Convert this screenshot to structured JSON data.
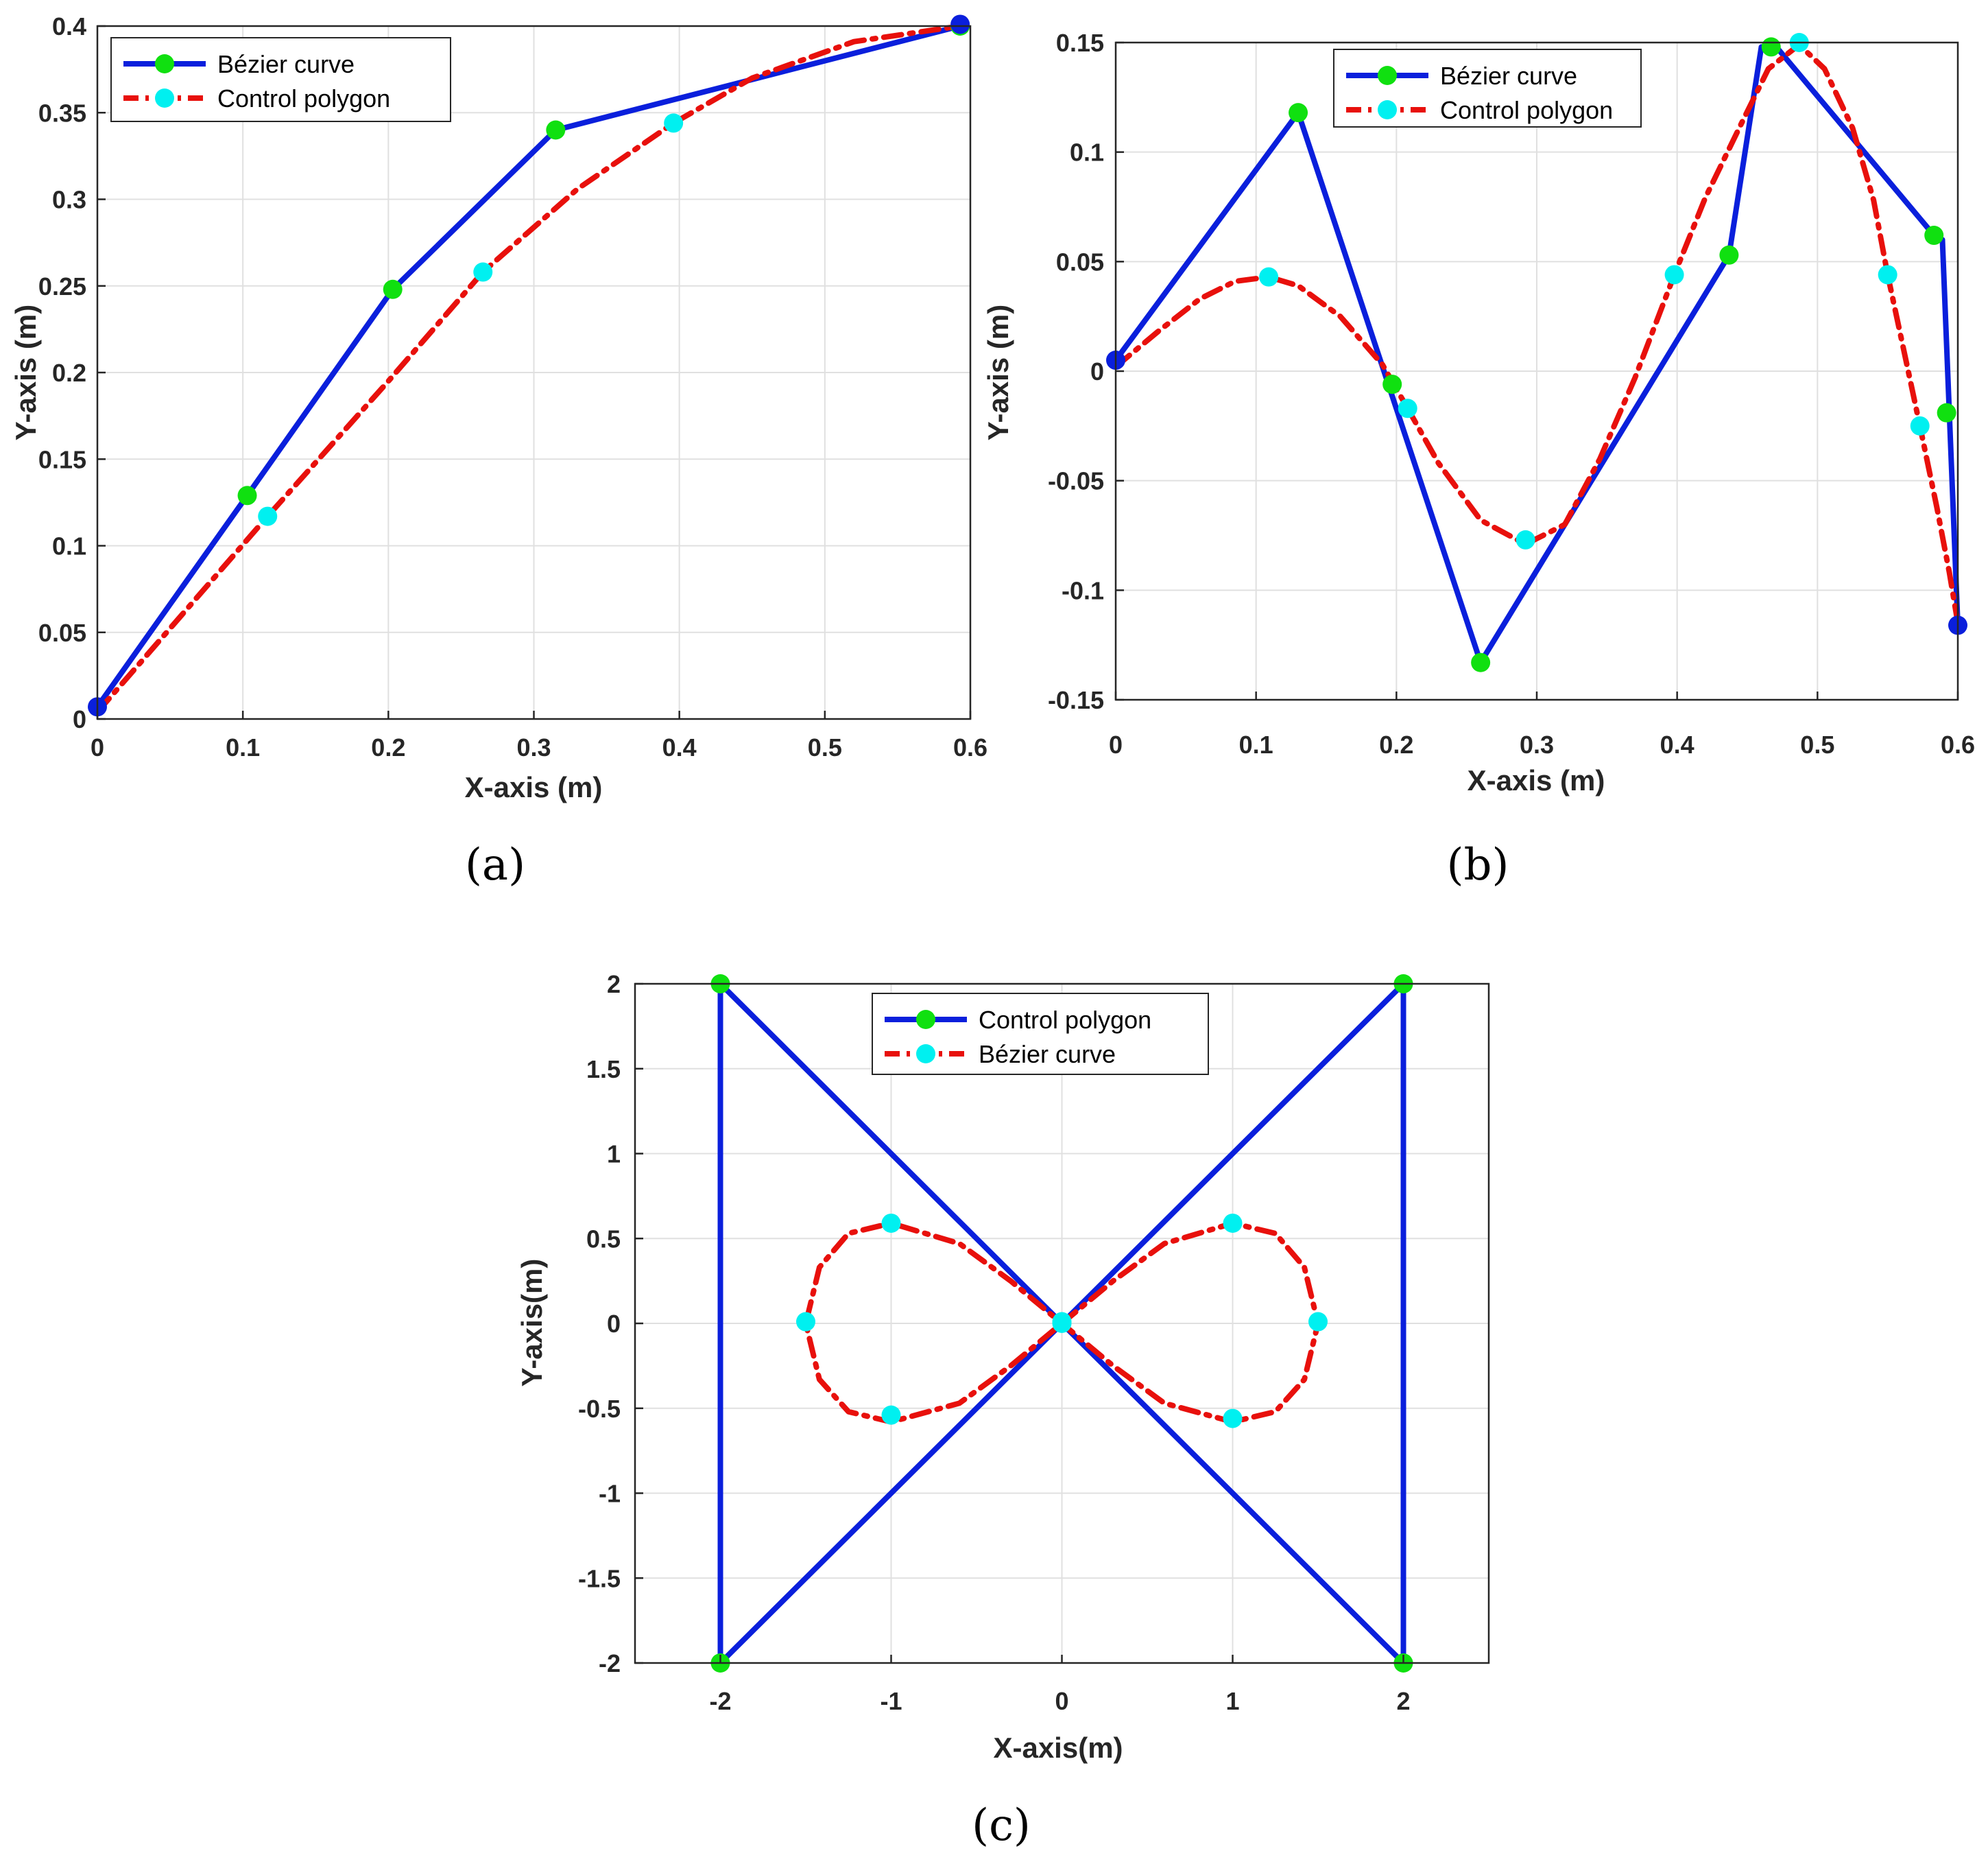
{
  "colors": {
    "polygon_line": "#0a1fdc",
    "curve_line": "#e8100c",
    "polygon_marker": "#10e010",
    "curve_marker": "#00f0f0",
    "endpoint_marker": "#0a1fdc",
    "grid": "#e0e0e0",
    "axes": "#262626"
  },
  "chart_data": [
    {
      "type": "line",
      "caption": "(a)",
      "xlabel": "X-axis (m)",
      "ylabel": "Y-axis (m)",
      "xlim": [
        0,
        0.6
      ],
      "ylim": [
        0,
        0.4
      ],
      "xticks": [
        0,
        0.1,
        0.2,
        0.3,
        0.4,
        0.5,
        0.6
      ],
      "xticklabels": [
        "0",
        "0.1",
        "0.2",
        "0.3",
        "0.4",
        "0.5",
        "0.6"
      ],
      "yticks": [
        0,
        0.05,
        0.1,
        0.15,
        0.2,
        0.25,
        0.3,
        0.35,
        0.4
      ],
      "yticklabels": [
        "0",
        "0.05",
        "0.1",
        "0.15",
        "0.2",
        "0.25",
        "0.3",
        "0.35",
        "0.4"
      ],
      "grid": true,
      "legend_position": "top-left",
      "legend": [
        {
          "label": "Bézier curve",
          "series": "polygon"
        },
        {
          "label": "Control polygon",
          "series": "curve"
        }
      ],
      "series": [
        {
          "name": "polygon",
          "style": "solid",
          "points": [
            [
              0,
              0.007
            ],
            [
              0.103,
              0.129
            ],
            [
              0.203,
              0.248
            ],
            [
              0.315,
              0.34
            ],
            [
              0.593,
              0.4
            ]
          ],
          "markers": [
            [
              0.103,
              0.129
            ],
            [
              0.203,
              0.248
            ],
            [
              0.315,
              0.34
            ],
            [
              0.593,
              0.4
            ]
          ],
          "endpoints": [
            [
              0,
              0.007
            ],
            [
              0.593,
              0.401
            ]
          ]
        },
        {
          "name": "curve",
          "style": "dashdot",
          "points": [
            [
              0,
              0.004
            ],
            [
              0.06,
              0.062
            ],
            [
              0.117,
              0.117
            ],
            [
              0.2,
              0.195
            ],
            [
              0.265,
              0.258
            ],
            [
              0.33,
              0.306
            ],
            [
              0.396,
              0.344
            ],
            [
              0.45,
              0.37
            ],
            [
              0.52,
              0.391
            ],
            [
              0.593,
              0.4
            ]
          ],
          "markers": [
            [
              0.117,
              0.117
            ],
            [
              0.265,
              0.258
            ],
            [
              0.396,
              0.344
            ]
          ]
        }
      ]
    },
    {
      "type": "line",
      "caption": "(b)",
      "xlabel": "X-axis (m)",
      "ylabel": "Y-axis (m)",
      "xlim": [
        0,
        0.6
      ],
      "ylim": [
        -0.15,
        0.15
      ],
      "xticks": [
        0,
        0.1,
        0.2,
        0.3,
        0.4,
        0.5,
        0.6
      ],
      "xticklabels": [
        "0",
        "0.1",
        "0.2",
        "0.3",
        "0.4",
        "0.5",
        "0.6"
      ],
      "yticks": [
        -0.15,
        -0.1,
        -0.05,
        0,
        0.05,
        0.1,
        0.15
      ],
      "yticklabels": [
        "-0.15",
        "-0.1",
        "-0.05",
        "0",
        "0.05",
        "0.1",
        "0.15"
      ],
      "grid": true,
      "legend_position": "top-center",
      "legend": [
        {
          "label": "Bézier curve",
          "series": "polygon"
        },
        {
          "label": "Control polygon",
          "series": "curve"
        }
      ],
      "series": [
        {
          "name": "polygon",
          "style": "solid",
          "points": [
            [
              0,
              0.005
            ],
            [
              0.13,
              0.118
            ],
            [
              0.26,
              -0.133
            ],
            [
              0.437,
              0.053
            ],
            [
              0.46,
              0.148
            ],
            [
              0.472,
              0.147
            ],
            [
              0.583,
              0.062
            ],
            [
              0.589,
              0.06
            ],
            [
              0.6,
              -0.116
            ]
          ],
          "markers": [
            [
              0.13,
              0.118
            ],
            [
              0.197,
              -0.006
            ],
            [
              0.26,
              -0.133
            ],
            [
              0.437,
              0.053
            ],
            [
              0.467,
              0.148
            ],
            [
              0.583,
              0.062
            ],
            [
              0.592,
              -0.019
            ]
          ],
          "endpoints": [
            [
              0,
              0.005
            ],
            [
              0.6,
              -0.116
            ]
          ]
        },
        {
          "name": "curve",
          "style": "dashdot",
          "points": [
            [
              0,
              0.002
            ],
            [
              0.03,
              0.018
            ],
            [
              0.06,
              0.033
            ],
            [
              0.085,
              0.041
            ],
            [
              0.109,
              0.043
            ],
            [
              0.13,
              0.039
            ],
            [
              0.16,
              0.025
            ],
            [
              0.19,
              0.003
            ],
            [
              0.208,
              -0.017
            ],
            [
              0.23,
              -0.042
            ],
            [
              0.26,
              -0.068
            ],
            [
              0.292,
              -0.079
            ],
            [
              0.32,
              -0.07
            ],
            [
              0.345,
              -0.04
            ],
            [
              0.37,
              -0.003
            ],
            [
              0.398,
              0.044
            ],
            [
              0.42,
              0.079
            ],
            [
              0.445,
              0.112
            ],
            [
              0.465,
              0.138
            ],
            [
              0.487,
              0.149
            ],
            [
              0.505,
              0.138
            ],
            [
              0.525,
              0.111
            ],
            [
              0.54,
              0.078
            ],
            [
              0.55,
              0.044
            ],
            [
              0.563,
              0.005
            ],
            [
              0.573,
              -0.025
            ],
            [
              0.585,
              -0.062
            ],
            [
              0.594,
              -0.092
            ],
            [
              0.6,
              -0.115
            ]
          ],
          "markers": [
            [
              0.109,
              0.043
            ],
            [
              0.208,
              -0.017
            ],
            [
              0.292,
              -0.077
            ],
            [
              0.398,
              0.044
            ],
            [
              0.487,
              0.15
            ],
            [
              0.55,
              0.044
            ],
            [
              0.573,
              -0.025
            ]
          ]
        }
      ]
    },
    {
      "type": "line",
      "caption": "(c)",
      "xlabel": "X-axis(m)",
      "ylabel": "Y-axis(m)",
      "xlim": [
        -2.5,
        2.5
      ],
      "ylim": [
        -2,
        2
      ],
      "xticks": [
        -2,
        -1,
        0,
        1,
        2
      ],
      "xticklabels": [
        "-2",
        "-1",
        "0",
        "1",
        "2"
      ],
      "yticks": [
        -2,
        -1.5,
        -1,
        -0.5,
        0,
        0.5,
        1,
        1.5,
        2
      ],
      "yticklabels": [
        "-2",
        "-1.5",
        "-1",
        "-0.5",
        "0",
        "0.5",
        "1",
        "1.5",
        "2"
      ],
      "grid": true,
      "legend_position": "top-center",
      "legend": [
        {
          "label": "Control polygon",
          "series": "polygon"
        },
        {
          "label": "Bézier curve",
          "series": "curve"
        }
      ],
      "series": [
        {
          "name": "polygon",
          "style": "solid",
          "points": [
            [
              -2,
              2
            ],
            [
              -2,
              -2
            ],
            [
              0,
              0
            ],
            [
              2,
              2
            ],
            [
              2,
              -2
            ],
            [
              0,
              0
            ],
            [
              -2,
              2
            ]
          ],
          "markers": [
            [
              -2,
              2
            ],
            [
              -2,
              -2
            ],
            [
              2,
              2
            ],
            [
              2,
              -2
            ]
          ],
          "endpoints": [
            [
              0,
              0
            ]
          ]
        },
        {
          "name": "curve",
          "style": "dashdot",
          "points": [
            [
              0,
              0
            ],
            [
              0.3,
              0.25
            ],
            [
              0.6,
              0.47
            ],
            [
              1.0,
              0.59
            ],
            [
              1.25,
              0.53
            ],
            [
              1.42,
              0.33
            ],
            [
              1.5,
              0.0
            ],
            [
              1.42,
              -0.33
            ],
            [
              1.25,
              -0.52
            ],
            [
              1.0,
              -0.58
            ],
            [
              0.6,
              -0.47
            ],
            [
              0.3,
              -0.25
            ],
            [
              0,
              0
            ],
            [
              -0.3,
              0.25
            ],
            [
              -0.6,
              0.47
            ],
            [
              -1.0,
              0.59
            ],
            [
              -1.25,
              0.53
            ],
            [
              -1.42,
              0.33
            ],
            [
              -1.5,
              0.0
            ],
            [
              -1.42,
              -0.33
            ],
            [
              -1.25,
              -0.52
            ],
            [
              -1.0,
              -0.58
            ],
            [
              -0.6,
              -0.47
            ],
            [
              -0.3,
              -0.25
            ],
            [
              0,
              0
            ]
          ],
          "markers": [
            [
              1.0,
              0.59
            ],
            [
              1.5,
              0.01
            ],
            [
              1.0,
              -0.56
            ],
            [
              -1.0,
              0.59
            ],
            [
              -1.5,
              0.01
            ],
            [
              -1.0,
              -0.54
            ],
            [
              0,
              0.01
            ]
          ]
        }
      ]
    }
  ]
}
